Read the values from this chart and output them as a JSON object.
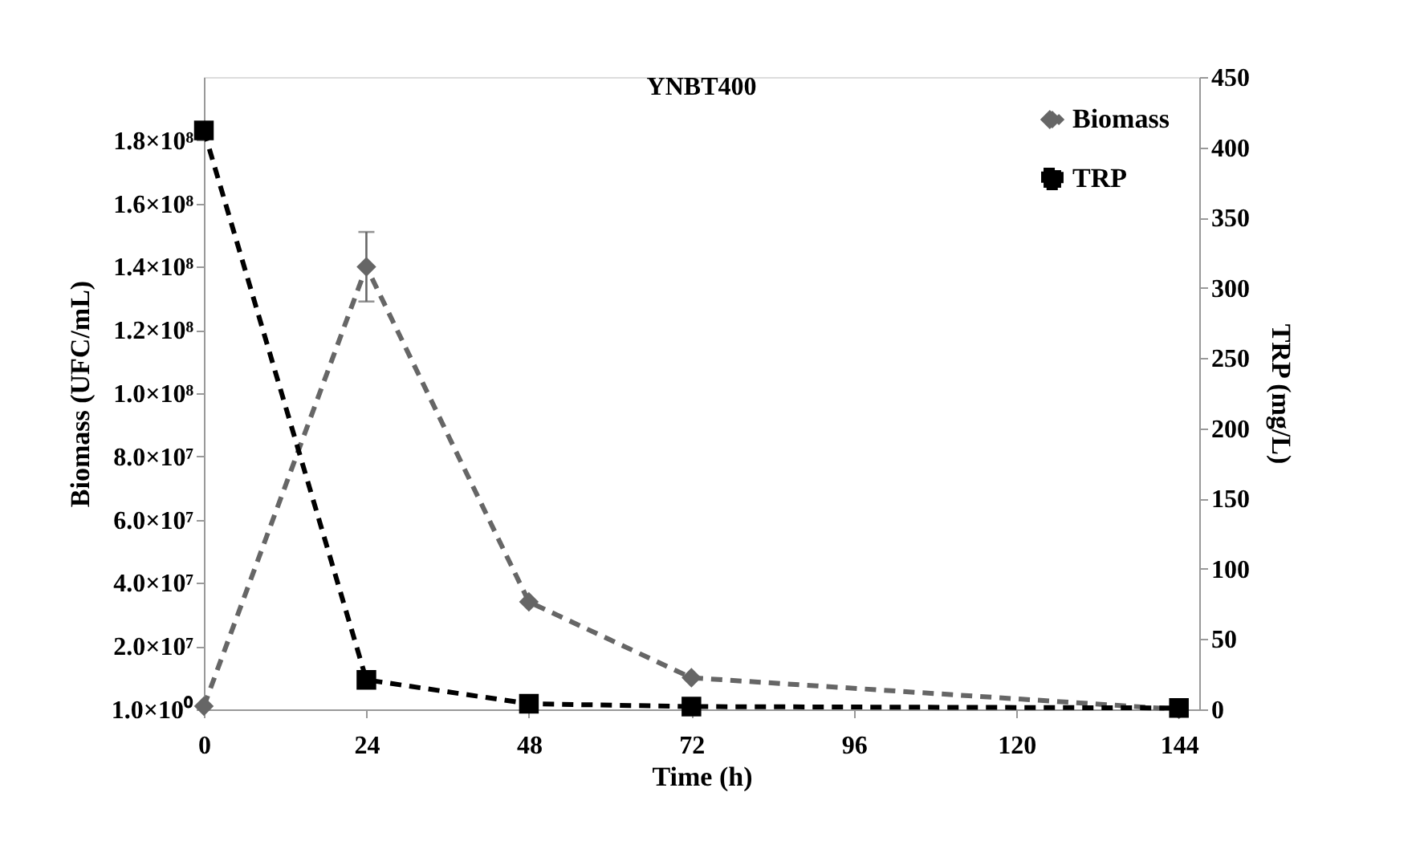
{
  "chart_data": {
    "type": "line",
    "title": "YNBT400",
    "xlabel": "Time (h)",
    "ylabel": "Biomass (UFC/mL)",
    "y2label": "TRP (mg/L)",
    "x": [
      0,
      24,
      48,
      72,
      144
    ],
    "series": [
      {
        "name": "Biomass",
        "color": "#666666",
        "marker": "diamond",
        "line_style": "dashed",
        "values": [
          1000000,
          140000000,
          34000000,
          10000000,
          0
        ],
        "errors": [
          null,
          11000000,
          null,
          null,
          null
        ]
      },
      {
        "name": "TRP",
        "color": "#000000",
        "marker": "square",
        "line_style": "dashed",
        "axis": "y2",
        "values": [
          412,
          21,
          4,
          2,
          1
        ]
      }
    ],
    "xlim": [
      0,
      147
    ],
    "xticks": [
      0,
      24,
      48,
      72,
      96,
      120,
      144
    ],
    "ylim": [
      0,
      200000000
    ],
    "yticks": [
      {
        "value": 1,
        "label": "1.0×10⁰"
      },
      {
        "value": 20000000,
        "label": "2.0×10⁷"
      },
      {
        "value": 40000000,
        "label": "4.0×10⁷"
      },
      {
        "value": 60000000,
        "label": "6.0×10⁷"
      },
      {
        "value": 80000000,
        "label": "8.0×10⁷"
      },
      {
        "value": 100000000,
        "label": "1.0×10⁸"
      },
      {
        "value": 120000000,
        "label": "1.2×10⁸"
      },
      {
        "value": 140000000,
        "label": "1.4×10⁸"
      },
      {
        "value": 160000000,
        "label": "1.6×10⁸"
      },
      {
        "value": 180000000,
        "label": "1.8×10⁸"
      }
    ],
    "y2lim": [
      0,
      450
    ],
    "y2ticks": [
      0,
      50,
      100,
      150,
      200,
      250,
      300,
      350,
      400,
      450
    ],
    "legend": "top right",
    "grid": false
  }
}
